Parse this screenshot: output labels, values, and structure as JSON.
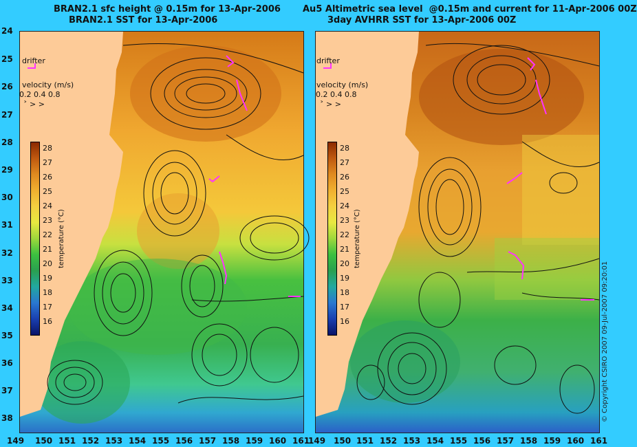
{
  "titles": {
    "left_line1": "BRAN2.1 sfc height @ 0.15m for 13-Apr-2006",
    "left_line2": "BRAN2.1 SST for 13-Apr-2006",
    "right_line1": "Au5 Altimetric sea level  @0.15m and current for 11-Apr-2006 00Z",
    "right_line2": "3day AVHRR SST for 13-Apr-2006 00Z"
  },
  "lat_labels": [
    "24",
    "25",
    "26",
    "27",
    "28",
    "29",
    "30",
    "31",
    "32",
    "33",
    "34",
    "35",
    "36",
    "37",
    "38"
  ],
  "lon_labels": [
    "149",
    "150",
    "151",
    "152",
    "153",
    "154",
    "155",
    "156",
    "157",
    "158",
    "159",
    "160",
    "161"
  ],
  "legend": {
    "drifter_label": "drifter",
    "velocity_label": "velocity (m/s)",
    "velocity_values": "0.2 0.4 0.8",
    "velocity_arrows": "˃  >  >"
  },
  "colorbar": {
    "title": "temperature (°C)",
    "ticks": [
      "28",
      "27",
      "26",
      "25",
      "24",
      "23",
      "22",
      "21",
      "20",
      "19",
      "18",
      "17",
      "16"
    ],
    "colors": [
      "#8b2a00",
      "#c05a10",
      "#e08a20",
      "#f0b030",
      "#f4d040",
      "#e8e840",
      "#9ed83c",
      "#3cc040",
      "#2aa050",
      "#22a8a0",
      "#2a78d0",
      "#1a40b0",
      "#0a1468"
    ]
  },
  "copyright": "© Copyright CSIRO 2007    09-Jul-2007 09:20:01",
  "accent_drifter_color": "#ff33ff"
}
